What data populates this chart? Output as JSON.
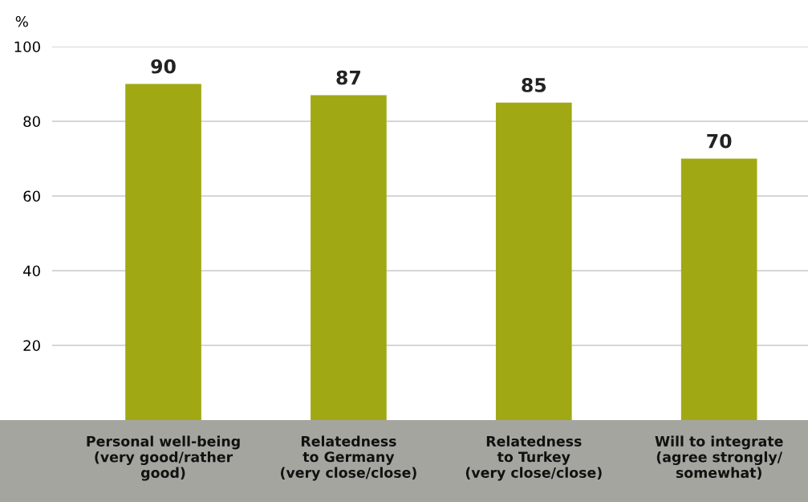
{
  "chart_data": {
    "type": "bar",
    "ylabel": "%",
    "categories": [
      "Personal well-being\n(very good/rather\ngood)",
      "Relatedness\nto Germany\n(very close/close)",
      "Relatedness\nto Turkey\n(very close/close)",
      "Will to integrate\n(agree strongly/\nsomewhat)"
    ],
    "values": [
      90,
      87,
      85,
      70
    ],
    "color": "#a0a914",
    "ylim": [
      0,
      100
    ],
    "yticks": [
      20,
      40,
      60,
      80,
      100
    ],
    "grid": "y",
    "data_labels": true
  }
}
